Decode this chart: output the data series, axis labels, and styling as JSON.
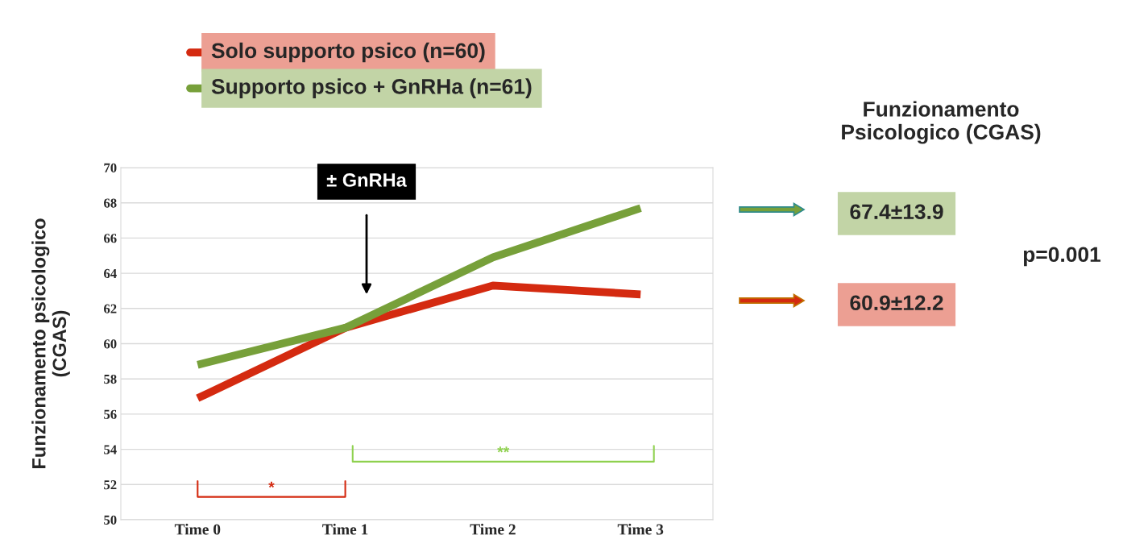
{
  "chart_data": {
    "type": "line",
    "ylabel": "Funzionamento psicologico\n(CGAS)",
    "categories": [
      "Time 0",
      "Time 1",
      "Time 2",
      "Time 3"
    ],
    "series": [
      {
        "name": "Solo supporto psico (n=60)",
        "color": "#d42a10",
        "values": [
          56.9,
          60.9,
          63.3,
          62.8
        ]
      },
      {
        "name": "Supporto psico + GnRHa (n=61)",
        "color": "#77a03a",
        "values": [
          58.8,
          60.9,
          64.9,
          67.7
        ]
      }
    ],
    "ylim": [
      50,
      70
    ],
    "yticks": [
      50,
      52,
      54,
      56,
      58,
      60,
      62,
      64,
      66,
      68,
      70
    ],
    "grid": "y",
    "legend": "top",
    "marker": "none",
    "line_style": "solid",
    "annotations": [
      "± GnRHa",
      "*",
      "**",
      "Funzionamento\nPsicologico (CGAS)",
      "67.4±13.9",
      "60.9±12.2",
      "p=0.001"
    ]
  }
}
